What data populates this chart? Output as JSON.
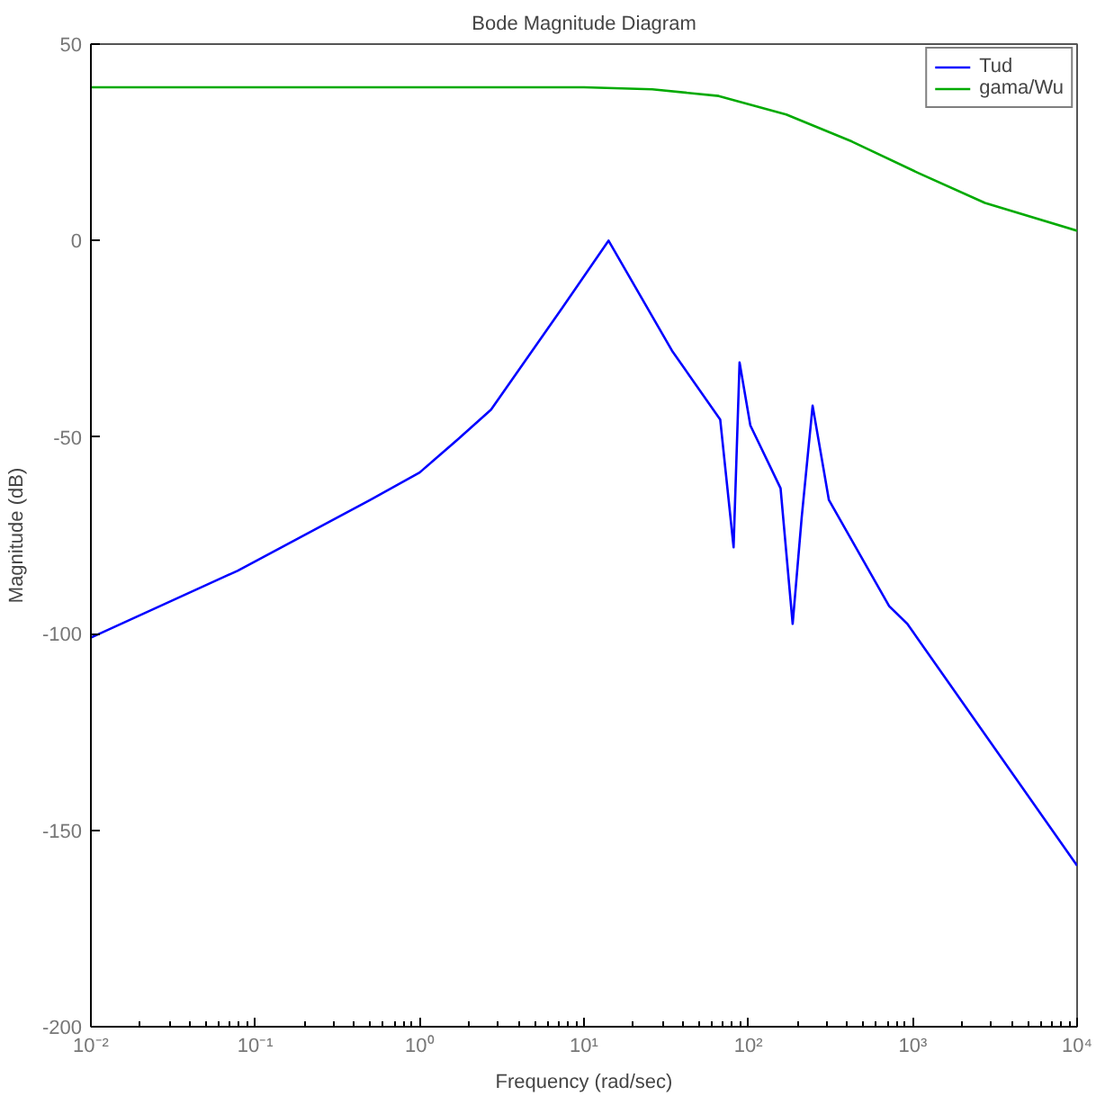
{
  "chart_data": {
    "type": "line",
    "title": "Bode Magnitude Diagram",
    "xlabel": "Frequency (rad/sec)",
    "ylabel": "Magnitude (dB)",
    "log": "x",
    "xlim": [
      0.01,
      10000
    ],
    "ylim": [
      -200,
      50
    ],
    "xticks": [
      {
        "value": 0.01,
        "label": "10⁻²"
      },
      {
        "value": 0.1,
        "label": "10⁻¹"
      },
      {
        "value": 1,
        "label": "10⁰"
      },
      {
        "value": 10,
        "label": "10¹"
      },
      {
        "value": 100,
        "label": "10²"
      },
      {
        "value": 1000,
        "label": "10³"
      },
      {
        "value": 10000,
        "label": "10⁴"
      }
    ],
    "yticks": [
      -200,
      -150,
      -100,
      -50,
      0,
      50
    ],
    "grid": false,
    "legend": "top right",
    "line_style": "solid",
    "marker": "none",
    "series": [
      {
        "name": "Tud",
        "color": "#0000ff",
        "x": [
          0.01,
          0.078,
          0.5,
          1,
          1.77,
          2.72,
          7.4,
          14.1,
          34.3,
          67.4,
          81.3,
          88.4,
          102.8,
          157,
          186,
          211,
          246,
          309,
          719,
          927,
          10000
        ],
        "values": [
          -101,
          -84,
          -66,
          -59,
          -50,
          -43,
          -17,
          0,
          -28,
          -45.5,
          -78,
          -31,
          -47,
          -63,
          -97.5,
          -70.5,
          -42,
          -66,
          -93,
          -97.5,
          -159
        ]
      },
      {
        "name": "gama/Wu",
        "color": "#00aa00",
        "x": [
          0.01,
          1,
          10,
          26,
          66,
          170,
          427,
          1070,
          2750,
          10000
        ],
        "values": [
          39,
          39,
          39,
          38.5,
          36.8,
          32.1,
          25.2,
          17.3,
          9.6,
          2.5
        ]
      }
    ]
  }
}
